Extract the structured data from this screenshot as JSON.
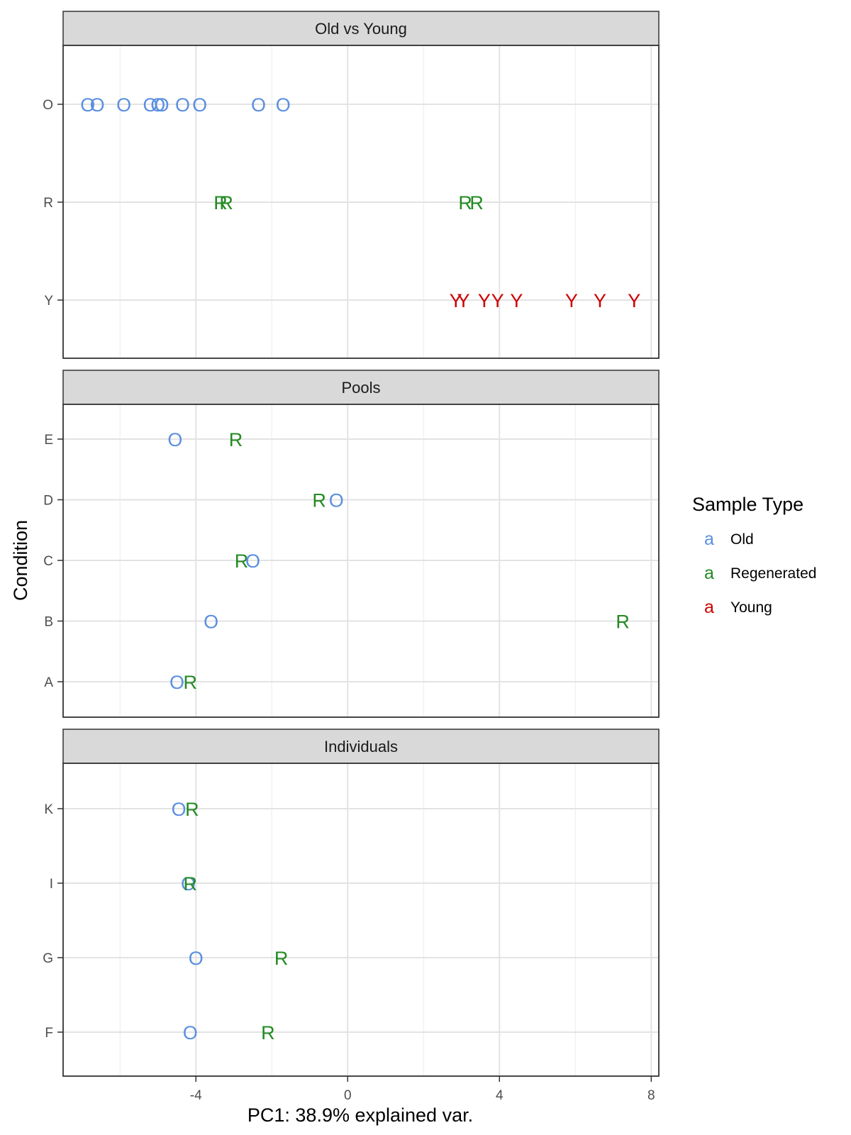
{
  "chart_data": {
    "type": "scatter",
    "xlabel": "PC1: 38.9% explained var.",
    "ylabel": "Condition",
    "xlim": [
      -7.5,
      8.2
    ],
    "x_ticks": [
      -4,
      0,
      4,
      8
    ],
    "x_tick_labels": [
      "-4",
      "0",
      "4",
      "8"
    ],
    "grid": true,
    "legend": {
      "title": "Sample Type",
      "position": "right",
      "key_glyph": "a",
      "entries": [
        {
          "name": "Old",
          "color": "#5b8fe0"
        },
        {
          "name": "Regenerated",
          "color": "#228b22"
        },
        {
          "name": "Young",
          "color": "#cc0000"
        }
      ]
    },
    "panels": [
      {
        "title": "Old vs Young",
        "categories": [
          "O",
          "R",
          "Y"
        ],
        "points": [
          {
            "x": -6.85,
            "y": "O",
            "type": "Old",
            "label": "O"
          },
          {
            "x": -6.6,
            "y": "O",
            "type": "Old",
            "label": "O"
          },
          {
            "x": -5.9,
            "y": "O",
            "type": "Old",
            "label": "O"
          },
          {
            "x": -5.2,
            "y": "O",
            "type": "Old",
            "label": "O"
          },
          {
            "x": -5.0,
            "y": "O",
            "type": "Old",
            "label": "O"
          },
          {
            "x": -4.9,
            "y": "O",
            "type": "Old",
            "label": "O"
          },
          {
            "x": -4.35,
            "y": "O",
            "type": "Old",
            "label": "O"
          },
          {
            "x": -3.9,
            "y": "O",
            "type": "Old",
            "label": "O"
          },
          {
            "x": -2.35,
            "y": "O",
            "type": "Old",
            "label": "O"
          },
          {
            "x": -1.7,
            "y": "O",
            "type": "Old",
            "label": "O"
          },
          {
            "x": -3.35,
            "y": "R",
            "type": "Regenerated",
            "label": "R"
          },
          {
            "x": -3.2,
            "y": "R",
            "type": "Regenerated",
            "label": "R"
          },
          {
            "x": 3.1,
            "y": "R",
            "type": "Regenerated",
            "label": "R"
          },
          {
            "x": 3.4,
            "y": "R",
            "type": "Regenerated",
            "label": "R"
          },
          {
            "x": 2.85,
            "y": "Y",
            "type": "Young",
            "label": "Y"
          },
          {
            "x": 3.05,
            "y": "Y",
            "type": "Young",
            "label": "Y"
          },
          {
            "x": 3.6,
            "y": "Y",
            "type": "Young",
            "label": "Y"
          },
          {
            "x": 3.95,
            "y": "Y",
            "type": "Young",
            "label": "Y"
          },
          {
            "x": 4.45,
            "y": "Y",
            "type": "Young",
            "label": "Y"
          },
          {
            "x": 5.9,
            "y": "Y",
            "type": "Young",
            "label": "Y"
          },
          {
            "x": 6.65,
            "y": "Y",
            "type": "Young",
            "label": "Y"
          },
          {
            "x": 7.55,
            "y": "Y",
            "type": "Young",
            "label": "Y"
          }
        ]
      },
      {
        "title": "Pools",
        "categories": [
          "A",
          "B",
          "C",
          "D",
          "E"
        ],
        "points": [
          {
            "x": -4.55,
            "y": "E",
            "type": "Old",
            "label": "O"
          },
          {
            "x": -2.95,
            "y": "E",
            "type": "Regenerated",
            "label": "R"
          },
          {
            "x": -0.75,
            "y": "D",
            "type": "Regenerated",
            "label": "R"
          },
          {
            "x": -0.3,
            "y": "D",
            "type": "Old",
            "label": "O"
          },
          {
            "x": -2.8,
            "y": "C",
            "type": "Regenerated",
            "label": "R"
          },
          {
            "x": -2.5,
            "y": "C",
            "type": "Old",
            "label": "O"
          },
          {
            "x": -3.6,
            "y": "B",
            "type": "Old",
            "label": "O"
          },
          {
            "x": 7.25,
            "y": "B",
            "type": "Regenerated",
            "label": "R"
          },
          {
            "x": -4.5,
            "y": "A",
            "type": "Old",
            "label": "O"
          },
          {
            "x": -4.15,
            "y": "A",
            "type": "Regenerated",
            "label": "R"
          }
        ]
      },
      {
        "title": "Individuals",
        "categories": [
          "F",
          "G",
          "I",
          "K"
        ],
        "points": [
          {
            "x": -4.45,
            "y": "K",
            "type": "Old",
            "label": "O"
          },
          {
            "x": -4.1,
            "y": "K",
            "type": "Regenerated",
            "label": "R"
          },
          {
            "x": -4.2,
            "y": "I",
            "type": "Old",
            "label": "O"
          },
          {
            "x": -4.15,
            "y": "I",
            "type": "Regenerated",
            "label": "R"
          },
          {
            "x": -4.0,
            "y": "G",
            "type": "Old",
            "label": "O"
          },
          {
            "x": -1.75,
            "y": "G",
            "type": "Regenerated",
            "label": "R"
          },
          {
            "x": -4.15,
            "y": "F",
            "type": "Old",
            "label": "O"
          },
          {
            "x": -2.1,
            "y": "F",
            "type": "Regenerated",
            "label": "R"
          }
        ]
      }
    ]
  }
}
